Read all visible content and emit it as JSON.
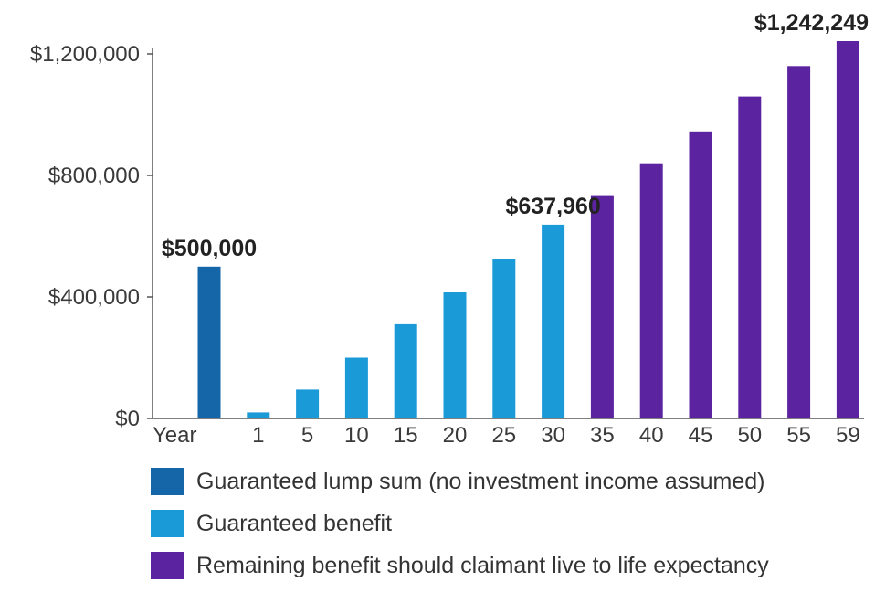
{
  "chart_data": {
    "type": "bar",
    "x_axis_title": "Year",
    "categories": [
      "",
      "1",
      "5",
      "10",
      "15",
      "20",
      "25",
      "30",
      "35",
      "40",
      "45",
      "50",
      "55",
      "59"
    ],
    "values": [
      500000,
      20000,
      95000,
      200000,
      310000,
      415000,
      525000,
      637960,
      735000,
      840000,
      945000,
      1060000,
      1160000,
      1242249
    ],
    "bar_series": [
      0,
      1,
      1,
      1,
      1,
      1,
      1,
      1,
      2,
      2,
      2,
      2,
      2,
      2
    ],
    "series": [
      {
        "name": "Guaranteed lump sum (no investment income assumed)",
        "color": "#1466a8"
      },
      {
        "name": "Guaranteed benefit",
        "color": "#1b9ad8"
      },
      {
        "name": "Remaining benefit should claimant live to life expectancy",
        "color": "#5c23a0"
      }
    ],
    "data_labels": [
      {
        "index": 0,
        "text": "$500,000"
      },
      {
        "index": 7,
        "text": "$637,960"
      },
      {
        "index": 13,
        "text": "$1,242,249"
      }
    ],
    "y_ticks": [
      {
        "value": 0,
        "label": "$0"
      },
      {
        "value": 400000,
        "label": "$400,000"
      },
      {
        "value": 800000,
        "label": "$800,000"
      },
      {
        "value": 1200000,
        "label": "$1,200,000"
      }
    ],
    "ylim": [
      0,
      1200000
    ],
    "grid": false,
    "legend_position": "bottom"
  }
}
